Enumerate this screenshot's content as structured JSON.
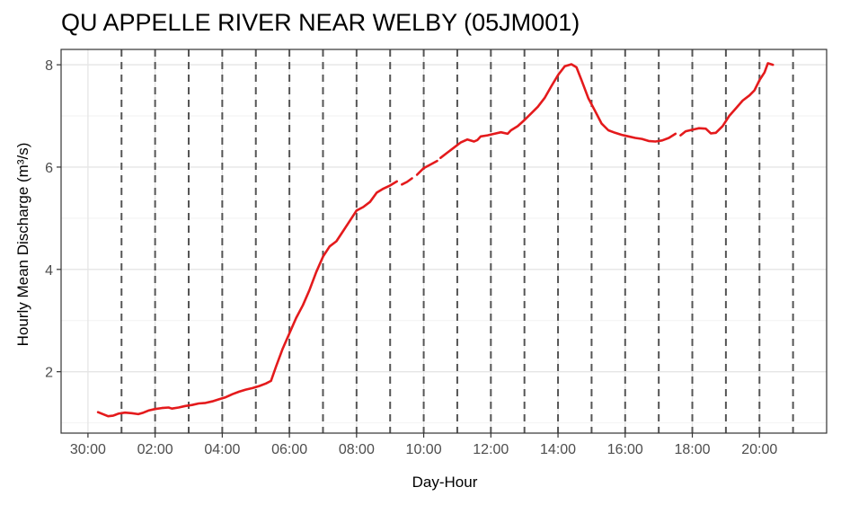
{
  "chart_data": {
    "type": "line",
    "title": "QU APPELLE RIVER NEAR WELBY (05JM001)",
    "xlabel": "Day-Hour",
    "ylabel": "Hourly Mean Discharge (m³/s)",
    "x_unit": "hours",
    "xlim": [
      -0.8,
      22.0
    ],
    "ylim": [
      0.8,
      8.3
    ],
    "x_ticks": [
      0,
      2,
      4,
      6,
      8,
      10,
      12,
      14,
      16,
      18,
      20
    ],
    "x_tick_labels": [
      "30:00",
      "02:00",
      "04:00",
      "06:00",
      "08:00",
      "10:00",
      "12:00",
      "14:00",
      "16:00",
      "18:00",
      "20:00"
    ],
    "y_ticks": [
      2,
      4,
      6,
      8
    ],
    "y_tick_labels": [
      "2",
      "4",
      "6",
      "8"
    ],
    "vertical_dashed_lines": [
      1,
      2,
      3,
      4,
      5,
      6,
      7,
      8,
      9,
      10,
      11,
      12,
      13,
      14,
      15,
      16,
      17,
      18,
      19,
      20,
      21
    ],
    "grid": true,
    "line_color": "#e41a1c",
    "dashed_line_color": "#555555",
    "series": [
      {
        "segments": [
          [
            [
              0.3,
              1.21
            ],
            [
              0.45,
              1.17
            ],
            [
              0.6,
              1.13
            ],
            [
              0.75,
              1.14
            ],
            [
              0.9,
              1.18
            ],
            [
              1.1,
              1.2
            ],
            [
              1.3,
              1.19
            ],
            [
              1.5,
              1.17
            ],
            [
              1.65,
              1.2
            ],
            [
              1.8,
              1.24
            ],
            [
              2.0,
              1.27
            ],
            [
              2.2,
              1.29
            ],
            [
              2.4,
              1.3
            ],
            [
              2.5,
              1.28
            ],
            [
              2.7,
              1.3
            ],
            [
              2.9,
              1.33
            ],
            [
              3.1,
              1.35
            ],
            [
              3.3,
              1.38
            ],
            [
              3.5,
              1.39
            ],
            [
              3.7,
              1.42
            ],
            [
              3.9,
              1.46
            ],
            [
              4.1,
              1.5
            ],
            [
              4.3,
              1.56
            ],
            [
              4.5,
              1.61
            ],
            [
              4.7,
              1.65
            ],
            [
              4.9,
              1.68
            ],
            [
              5.1,
              1.72
            ],
            [
              5.3,
              1.77
            ],
            [
              5.45,
              1.82
            ],
            [
              5.6,
              2.1
            ],
            [
              5.8,
              2.45
            ],
            [
              6.0,
              2.75
            ],
            [
              6.2,
              3.05
            ],
            [
              6.4,
              3.3
            ],
            [
              6.6,
              3.6
            ],
            [
              6.8,
              3.95
            ],
            [
              7.0,
              4.25
            ],
            [
              7.2,
              4.45
            ],
            [
              7.4,
              4.55
            ],
            [
              7.6,
              4.75
            ],
            [
              7.8,
              4.95
            ],
            [
              8.0,
              5.15
            ],
            [
              8.2,
              5.22
            ],
            [
              8.4,
              5.32
            ],
            [
              8.6,
              5.5
            ],
            [
              8.8,
              5.58
            ],
            [
              9.0,
              5.64
            ],
            [
              9.2,
              5.72
            ]
          ],
          [
            [
              9.35,
              5.66
            ],
            [
              9.5,
              5.71
            ],
            [
              9.65,
              5.78
            ]
          ],
          [
            [
              9.8,
              5.85
            ],
            [
              10.0,
              5.98
            ],
            [
              10.2,
              6.05
            ],
            [
              10.4,
              6.12
            ]
          ],
          [
            [
              10.5,
              6.18
            ],
            [
              10.7,
              6.28
            ],
            [
              10.9,
              6.38
            ],
            [
              11.1,
              6.48
            ],
            [
              11.3,
              6.54
            ],
            [
              11.5,
              6.5
            ],
            [
              11.6,
              6.53
            ],
            [
              11.7,
              6.6
            ],
            [
              11.9,
              6.62
            ],
            [
              12.1,
              6.65
            ],
            [
              12.3,
              6.68
            ],
            [
              12.5,
              6.65
            ],
            [
              12.6,
              6.72
            ],
            [
              12.8,
              6.8
            ],
            [
              13.0,
              6.92
            ],
            [
              13.2,
              7.05
            ],
            [
              13.4,
              7.18
            ],
            [
              13.6,
              7.35
            ],
            [
              13.8,
              7.58
            ],
            [
              14.0,
              7.8
            ],
            [
              14.2,
              7.97
            ],
            [
              14.4,
              8.01
            ],
            [
              14.55,
              7.95
            ],
            [
              14.7,
              7.7
            ],
            [
              14.9,
              7.35
            ],
            [
              15.1,
              7.1
            ],
            [
              15.3,
              6.85
            ],
            [
              15.5,
              6.72
            ],
            [
              15.7,
              6.67
            ],
            [
              15.9,
              6.63
            ],
            [
              16.1,
              6.6
            ],
            [
              16.3,
              6.57
            ],
            [
              16.5,
              6.55
            ],
            [
              16.7,
              6.51
            ],
            [
              16.9,
              6.5
            ],
            [
              17.1,
              6.52
            ],
            [
              17.3,
              6.57
            ],
            [
              17.5,
              6.65
            ]
          ],
          [
            [
              17.65,
              6.62
            ],
            [
              17.8,
              6.7
            ],
            [
              18.0,
              6.73
            ],
            [
              18.2,
              6.76
            ],
            [
              18.4,
              6.75
            ],
            [
              18.55,
              6.66
            ],
            [
              18.7,
              6.67
            ],
            [
              18.9,
              6.8
            ],
            [
              19.1,
              7.0
            ],
            [
              19.3,
              7.15
            ],
            [
              19.5,
              7.3
            ],
            [
              19.7,
              7.4
            ],
            [
              19.85,
              7.5
            ],
            [
              20.0,
              7.7
            ],
            [
              20.15,
              7.85
            ],
            [
              20.25,
              8.03
            ],
            [
              20.4,
              8.0
            ]
          ]
        ]
      }
    ]
  }
}
